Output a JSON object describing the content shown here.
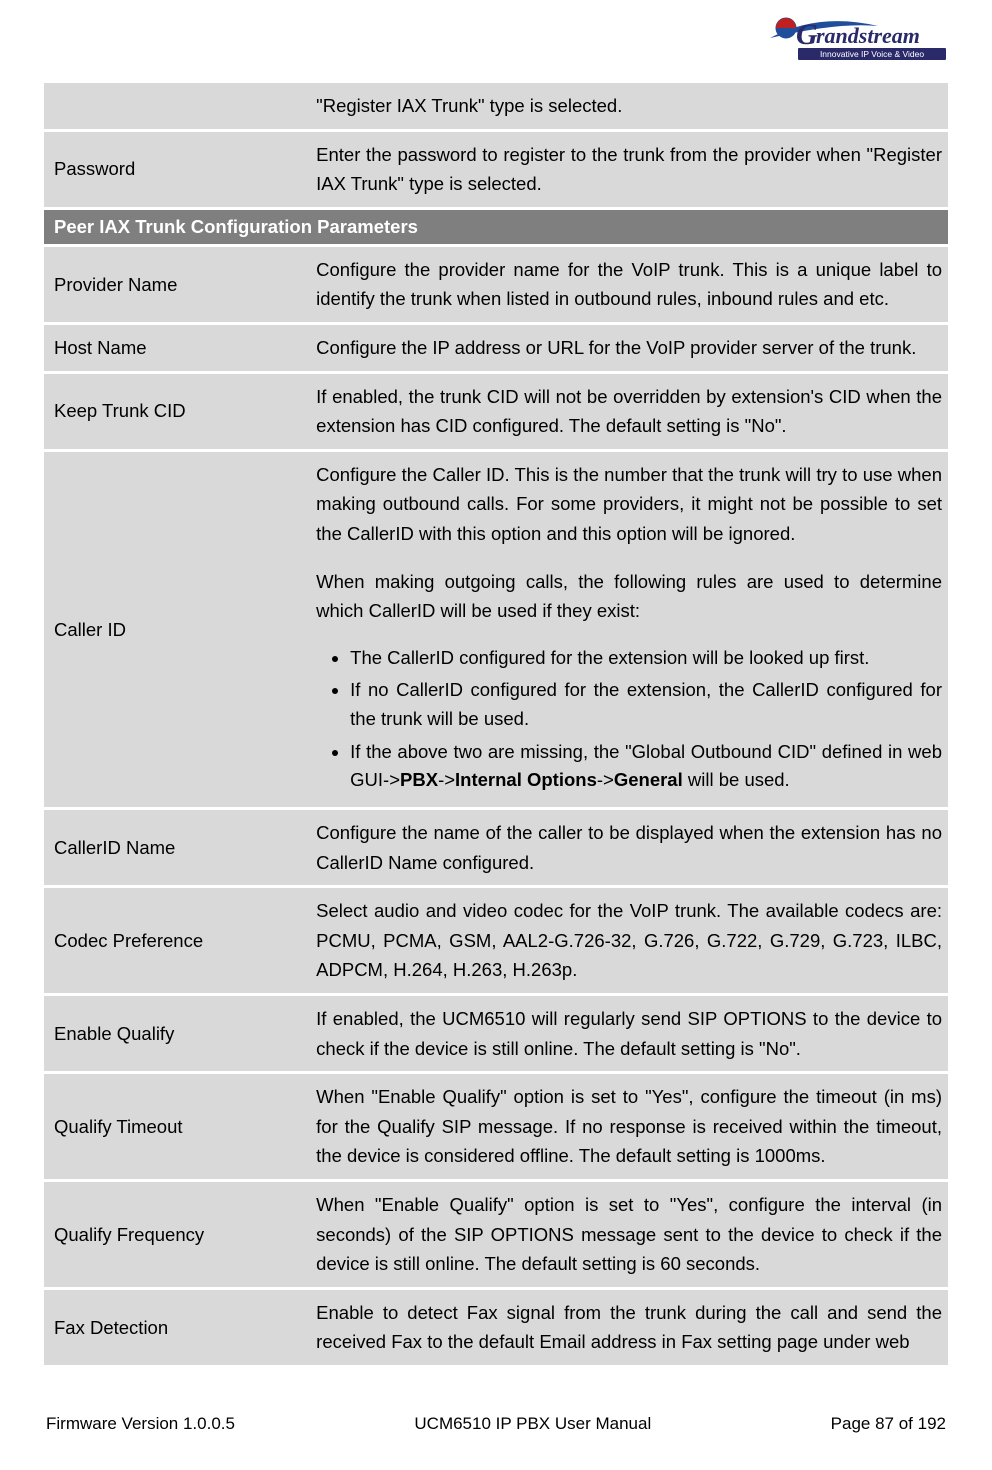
{
  "logo": {
    "brand_top_text": "G",
    "brand_text": "randstream",
    "brand_sub": "Innovative IP Voice & Video",
    "swoosh_color": "#1f4e9c",
    "text_color": "#2a2a6a",
    "ball_color": "#c02020"
  },
  "rows": [
    {
      "type": "param",
      "name": "",
      "desc_plain": "\"Register IAX Trunk\" type is selected."
    },
    {
      "type": "param",
      "name": "Password",
      "desc_plain": "Enter the password to register to the trunk from the provider when \"Register IAX Trunk\" type is selected."
    },
    {
      "type": "section",
      "title": "Peer IAX Trunk Configuration Parameters"
    },
    {
      "type": "param",
      "name": "Provider Name",
      "desc_plain": "Configure the provider name for the VoIP trunk. This is a unique label to identify the trunk when listed in outbound rules, inbound rules and etc."
    },
    {
      "type": "param",
      "name": "Host Name",
      "desc_plain": "Configure the IP address or URL for the VoIP provider server of the trunk."
    },
    {
      "type": "param",
      "name": "Keep Trunk CID",
      "desc_plain": "If enabled, the trunk CID will not be overridden by extension's CID when the extension has CID configured. The default setting is \"No\"."
    },
    {
      "type": "param_caller_id",
      "name": "Caller ID",
      "p1": "Configure the Caller ID. This is the number that the trunk will try to use when making outbound calls. For some providers, it might not be possible to set the CallerID with this option and this option will be ignored.",
      "p2": "When making outgoing calls, the following rules are used to determine which CallerID will be used if they exist:",
      "b1": "The CallerID configured for the extension will be looked up first.",
      "b2": "If no CallerID configured for the extension, the CallerID configured for the trunk will be used.",
      "b3_pre": "If the above two are missing, the \"Global Outbound CID\" defined in web GUI->",
      "b3_bold1": "PBX",
      "b3_mid1": "->",
      "b3_bold2": "Internal Options",
      "b3_mid2": "->",
      "b3_bold3": "General",
      "b3_post": " will be used."
    },
    {
      "type": "param",
      "name": "CallerID Name",
      "desc_plain": "Configure the name of the caller to be displayed when the extension has no CallerID Name configured."
    },
    {
      "type": "param",
      "name": "Codec Preference",
      "desc_plain": "Select audio and video codec for the VoIP trunk. The available codecs are: PCMU, PCMA, GSM, AAL2-G.726-32, G.726, G.722, G.729, G.723, ILBC, ADPCM, H.264, H.263, H.263p."
    },
    {
      "type": "param",
      "name": "Enable Qualify",
      "desc_plain": "If enabled, the UCM6510 will regularly send SIP OPTIONS to the device to check if the device is still online. The default setting is \"No\"."
    },
    {
      "type": "param",
      "name": "Qualify Timeout",
      "desc_plain": "When \"Enable Qualify\" option is set to \"Yes\", configure the timeout (in ms) for the Qualify SIP message. If no response is received within the timeout, the device is considered offline. The default setting is 1000ms."
    },
    {
      "type": "param",
      "name": "Qualify Frequency",
      "desc_plain": "When \"Enable Qualify\" option is set to \"Yes\", configure the interval (in seconds) of the SIP OPTIONS message sent to the device to check if the device is still online. The default setting is 60 seconds."
    },
    {
      "type": "param",
      "name": "Fax Detection",
      "desc_plain": "Enable to detect Fax signal from the trunk during the call and send the received Fax to the default Email address in Fax setting page under web"
    }
  ],
  "footer": {
    "left": "Firmware Version 1.0.0.5",
    "center": "UCM6510 IP PBX User Manual",
    "right": "Page 87 of 192"
  }
}
